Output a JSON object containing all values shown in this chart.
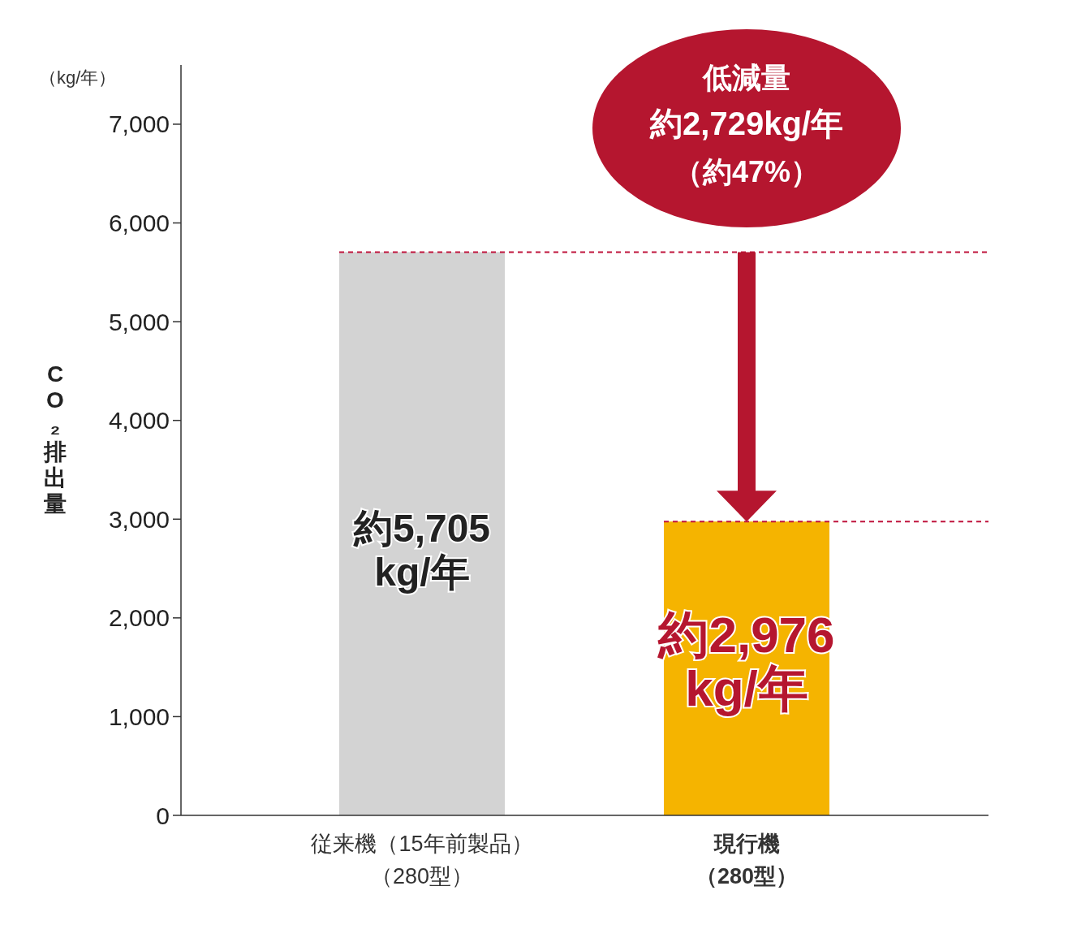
{
  "chart_data": {
    "type": "bar",
    "ylabel": "CO₂排出量",
    "categories": [
      "従来機（15年前製品）（280型）",
      "現行機（280型）"
    ],
    "values": [
      5705,
      2976
    ],
    "colors": [
      "#d3d3d3",
      "#f5b400"
    ],
    "value_labels": [
      "約5,705kg/年",
      "約2,976kg/年"
    ],
    "ylim": [
      0,
      7600
    ],
    "yticks": [
      0,
      {
        "value": 1000,
        "label": "1,000"
      },
      {
        "value": 2000,
        "label": "2,000"
      },
      {
        "value": 3000,
        "label": "3,000"
      },
      {
        "value": 4000,
        "label": "4,000"
      },
      {
        "value": 5000,
        "label": "5,000"
      },
      {
        "value": 6000,
        "label": "6,000"
      },
      {
        "value": 7000,
        "label": "7,000"
      }
    ],
    "ref_lines": [
      {
        "axis": "y",
        "value": 5705,
        "color": "#c0143c",
        "line_style": "dashed"
      },
      {
        "axis": "y",
        "value": 2976,
        "color": "#c0143c",
        "line_style": "dashed"
      }
    ],
    "annotations": [
      "（kg/年）",
      "低減量",
      "約2,729kg/年",
      "（約47%）"
    ],
    "grid": false
  }
}
